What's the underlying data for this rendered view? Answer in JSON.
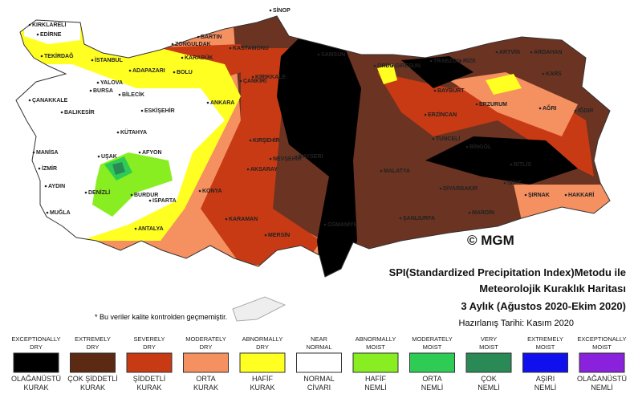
{
  "title": {
    "line1": "SPI(Standardized Precipitation Index)Metodu ile",
    "line2": "Meteorolojik Kuraklık Haritası",
    "line3": "3 Aylık (Ağustos 2020-Ekim 2020)",
    "prepared": "Hazırlanış Tarihi: Kasım 2020"
  },
  "copyright": "© MGM",
  "note": "* Bu veriler kalite kontrolden geçmemiştir.",
  "legend": [
    {
      "en": [
        "EXCEPTIONALLY",
        "DRY"
      ],
      "tr": [
        "OLAĞANÜSTÜ",
        "KURAK"
      ],
      "color": "#000000"
    },
    {
      "en": [
        "EXTREMELY",
        "DRY"
      ],
      "tr": [
        "ÇOK ŞİDDETLİ",
        "KURAK"
      ],
      "color": "#5c2a12"
    },
    {
      "en": [
        "SEVERELY",
        "DRY"
      ],
      "tr": [
        "ŞİDDETLİ",
        "KURAK"
      ],
      "color": "#c83a14"
    },
    {
      "en": [
        "MODERATELY",
        "DRY"
      ],
      "tr": [
        "ORTA",
        "KURAK"
      ],
      "color": "#f59060"
    },
    {
      "en": [
        "ABNORMALLY",
        "DRY"
      ],
      "tr": [
        "HAFİF",
        "KURAK"
      ],
      "color": "#ffff22"
    },
    {
      "en": [
        "NEAR",
        "NORMAL"
      ],
      "tr": [
        "NORMAL",
        "CİVARI"
      ],
      "color": "#ffffff"
    },
    {
      "en": [
        "ABNORMALLY",
        "MOIST"
      ],
      "tr": [
        "HAFİF",
        "NEMLİ"
      ],
      "color": "#88ee22"
    },
    {
      "en": [
        "MODERATELY",
        "MOIST"
      ],
      "tr": [
        "ORTA",
        "NEMLİ"
      ],
      "color": "#2ecc55"
    },
    {
      "en": [
        "VERY",
        "MOIST"
      ],
      "tr": [
        "ÇOK",
        "NEMLİ"
      ],
      "color": "#2a8a55"
    },
    {
      "en": [
        "EXTREMELY",
        "MOIST"
      ],
      "tr": [
        "AŞIRI",
        "NEMLİ"
      ],
      "color": "#1010ee"
    },
    {
      "en": [
        "EXCEPTIONALLY",
        "MOIST"
      ],
      "tr": [
        "OLAĞANÜSTÜ",
        "NEMLİ"
      ],
      "color": "#8a22dd"
    }
  ],
  "cities": [
    "KIRKLARELİ",
    "EDİRNE",
    "TEKİRDAĞ",
    "İSTANBUL",
    "ZONGULDAK",
    "BARTIN",
    "KASTAMONU",
    "SİNOP",
    "SAMSUN",
    "ORDU",
    "GİRESUN",
    "TRABZON",
    "RİZE",
    "ARTVİN",
    "ARDAHAN",
    "KARS",
    "IĞDIR",
    "AĞRI",
    "ERZURUM",
    "BAYBURT",
    "ERZİNCAN",
    "TUNCELİ",
    "BİNGÖL",
    "BİTLİS",
    "HAKKARİ",
    "ŞIRNAK",
    "SİİRT",
    "MARDİN",
    "DİYARBAKIR",
    "ŞANLIURFA",
    "MALATYA",
    "OSMANİYE",
    "MERSİN",
    "KARAMAN",
    "KONYA",
    "AKSARAY",
    "NEVŞEHİR",
    "KAYSERİ",
    "KIRŞEHİR",
    "KIRIKKALE",
    "ÇANKIRI",
    "ANKARA",
    "ESKİŞEHİR",
    "BİLECİK",
    "BOLU",
    "KARABÜK",
    "ADAPAZARI",
    "YALOVA",
    "BURSA",
    "BALIKESİR",
    "ÇANAKKALE",
    "KÜTAHYA",
    "UŞAK",
    "AFYON",
    "MANİSA",
    "İZMİR",
    "AYDIN",
    "DENİZLİ",
    "MUĞLA",
    "BURDUR",
    "ISPARTA",
    "ANTALYA"
  ]
}
